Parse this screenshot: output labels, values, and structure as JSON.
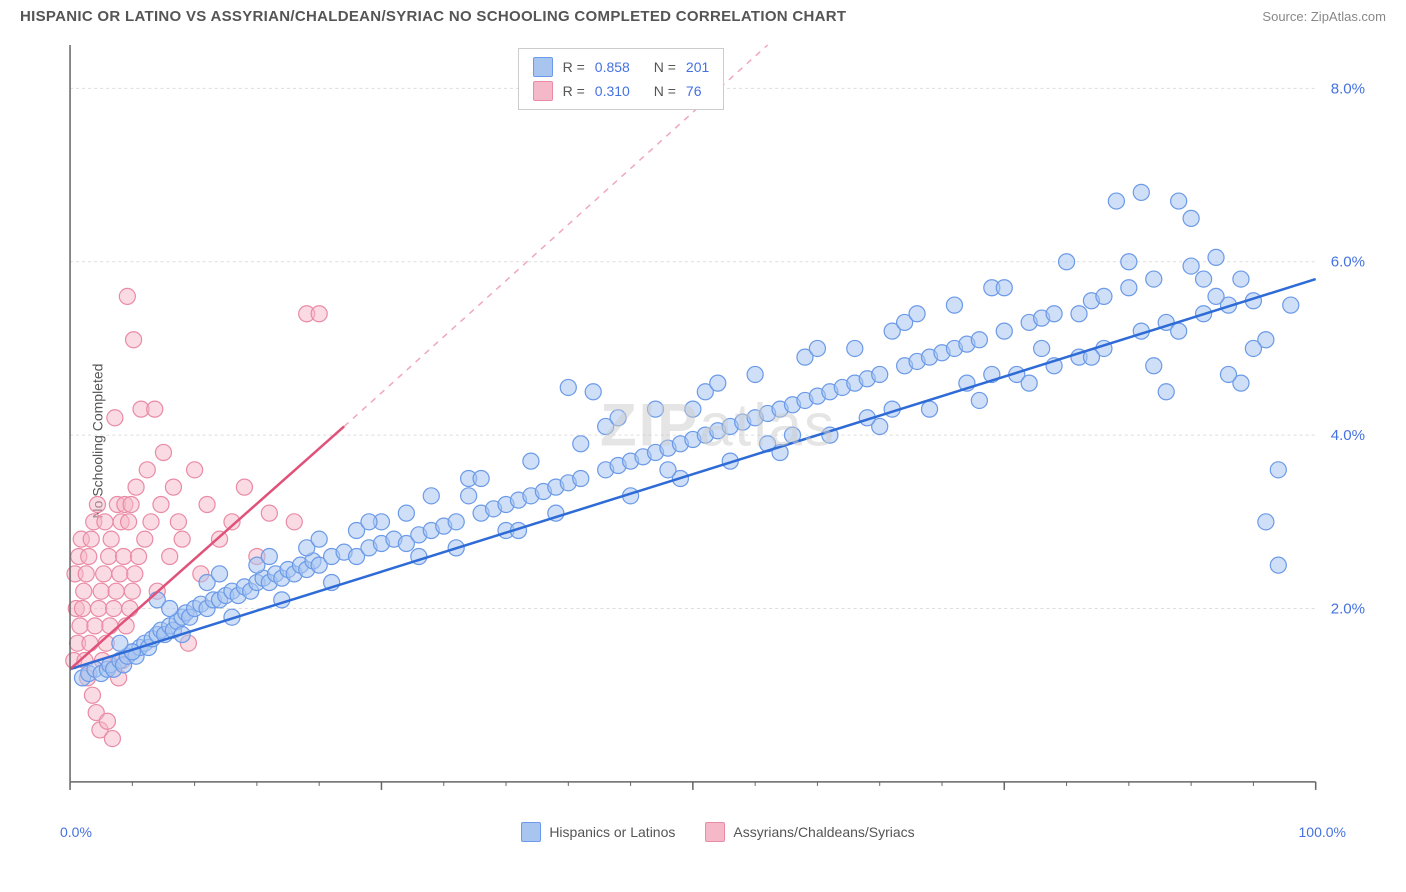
{
  "title": "HISPANIC OR LATINO VS ASSYRIAN/CHALDEAN/SYRIAC NO SCHOOLING COMPLETED CORRELATION CHART",
  "source_label": "Source:",
  "source_name": "ZipAtlas.com",
  "y_axis_label": "No Schooling Completed",
  "watermark": "ZIPatlas",
  "chart": {
    "type": "scatter",
    "xlim": [
      0,
      100
    ],
    "ylim": [
      0,
      8.5
    ],
    "x_tick_min": "0.0%",
    "x_tick_max": "100.0%",
    "y_ticks": [
      2.0,
      4.0,
      6.0,
      8.0
    ],
    "y_tick_labels": [
      "2.0%",
      "4.0%",
      "6.0%",
      "8.0%"
    ],
    "x_major_ticks": [
      0,
      25,
      50,
      75,
      100
    ],
    "background_color": "#ffffff",
    "grid_color": "#dddddd",
    "axis_color": "#666666",
    "marker_radius": 8,
    "marker_stroke_width": 1.2,
    "trend_line_width": 2.5,
    "series": [
      {
        "name": "Hispanics or Latinos",
        "fill_color": "#a8c5f0",
        "stroke_color": "#6b9ae8",
        "line_color": "#2e6bd6",
        "fill_opacity": 0.55,
        "R": "0.858",
        "N": "201",
        "trend": {
          "x1": 0,
          "y1": 1.3,
          "x2": 100,
          "y2": 5.8
        },
        "points": [
          [
            1,
            1.2
          ],
          [
            1.5,
            1.25
          ],
          [
            2,
            1.3
          ],
          [
            2.5,
            1.25
          ],
          [
            3,
            1.3
          ],
          [
            3.2,
            1.35
          ],
          [
            3.5,
            1.3
          ],
          [
            4,
            1.4
          ],
          [
            4.3,
            1.35
          ],
          [
            4.6,
            1.45
          ],
          [
            5,
            1.5
          ],
          [
            5.3,
            1.45
          ],
          [
            5.6,
            1.55
          ],
          [
            6,
            1.6
          ],
          [
            6.3,
            1.55
          ],
          [
            6.6,
            1.65
          ],
          [
            7,
            1.7
          ],
          [
            7.3,
            1.75
          ],
          [
            7.6,
            1.7
          ],
          [
            8,
            1.8
          ],
          [
            8.3,
            1.75
          ],
          [
            8.6,
            1.85
          ],
          [
            9,
            1.9
          ],
          [
            9.3,
            1.95
          ],
          [
            9.6,
            1.9
          ],
          [
            10,
            2.0
          ],
          [
            10.5,
            2.05
          ],
          [
            11,
            2.0
          ],
          [
            11.5,
            2.1
          ],
          [
            12,
            2.1
          ],
          [
            12.5,
            2.15
          ],
          [
            13,
            2.2
          ],
          [
            13.5,
            2.15
          ],
          [
            14,
            2.25
          ],
          [
            14.5,
            2.2
          ],
          [
            15,
            2.3
          ],
          [
            15.5,
            2.35
          ],
          [
            16,
            2.3
          ],
          [
            16.5,
            2.4
          ],
          [
            17,
            2.35
          ],
          [
            17.5,
            2.45
          ],
          [
            18,
            2.4
          ],
          [
            18.5,
            2.5
          ],
          [
            19,
            2.45
          ],
          [
            19.5,
            2.55
          ],
          [
            20,
            2.5
          ],
          [
            21,
            2.6
          ],
          [
            22,
            2.65
          ],
          [
            23,
            2.6
          ],
          [
            24,
            2.7
          ],
          [
            25,
            2.75
          ],
          [
            26,
            2.8
          ],
          [
            27,
            2.75
          ],
          [
            28,
            2.85
          ],
          [
            29,
            2.9
          ],
          [
            30,
            2.95
          ],
          [
            31,
            3.0
          ],
          [
            32,
            3.5
          ],
          [
            33,
            3.1
          ],
          [
            34,
            3.15
          ],
          [
            35,
            3.2
          ],
          [
            36,
            3.25
          ],
          [
            37,
            3.3
          ],
          [
            38,
            3.35
          ],
          [
            39,
            3.4
          ],
          [
            40,
            3.45
          ],
          [
            41,
            3.5
          ],
          [
            42,
            4.5
          ],
          [
            43,
            3.6
          ],
          [
            44,
            3.65
          ],
          [
            45,
            3.7
          ],
          [
            46,
            3.75
          ],
          [
            47,
            3.8
          ],
          [
            48,
            3.85
          ],
          [
            49,
            3.9
          ],
          [
            50,
            3.95
          ],
          [
            51,
            4.0
          ],
          [
            52,
            4.05
          ],
          [
            53,
            4.1
          ],
          [
            54,
            4.15
          ],
          [
            55,
            4.2
          ],
          [
            56,
            4.25
          ],
          [
            57,
            4.3
          ],
          [
            58,
            4.35
          ],
          [
            59,
            4.4
          ],
          [
            60,
            4.45
          ],
          [
            61,
            4.5
          ],
          [
            62,
            4.55
          ],
          [
            63,
            4.6
          ],
          [
            64,
            4.65
          ],
          [
            65,
            4.7
          ],
          [
            66,
            5.2
          ],
          [
            67,
            4.8
          ],
          [
            68,
            4.85
          ],
          [
            69,
            4.9
          ],
          [
            70,
            4.95
          ],
          [
            71,
            5.0
          ],
          [
            72,
            5.05
          ],
          [
            73,
            5.1
          ],
          [
            74,
            5.7
          ],
          [
            75,
            5.2
          ],
          [
            76,
            4.7
          ],
          [
            77,
            5.3
          ],
          [
            78,
            5.35
          ],
          [
            79,
            5.4
          ],
          [
            80,
            6.0
          ],
          [
            81,
            4.9
          ],
          [
            82,
            5.55
          ],
          [
            83,
            5.6
          ],
          [
            84,
            6.7
          ],
          [
            85,
            5.7
          ],
          [
            86,
            5.2
          ],
          [
            87,
            5.8
          ],
          [
            88,
            5.3
          ],
          [
            89,
            6.7
          ],
          [
            90,
            5.95
          ],
          [
            91,
            5.4
          ],
          [
            92,
            6.05
          ],
          [
            93,
            5.5
          ],
          [
            94,
            4.6
          ],
          [
            95,
            5.55
          ],
          [
            96,
            5.1
          ],
          [
            97,
            3.6
          ],
          [
            97,
            2.5
          ],
          [
            96,
            3.0
          ],
          [
            95,
            5.0
          ],
          [
            93,
            4.7
          ],
          [
            91,
            5.8
          ],
          [
            89,
            5.2
          ],
          [
            87,
            4.8
          ],
          [
            85,
            6.0
          ],
          [
            83,
            5.0
          ],
          [
            81,
            5.4
          ],
          [
            79,
            4.8
          ],
          [
            77,
            4.6
          ],
          [
            75,
            5.7
          ],
          [
            73,
            4.4
          ],
          [
            71,
            5.5
          ],
          [
            69,
            4.3
          ],
          [
            67,
            5.3
          ],
          [
            65,
            4.1
          ],
          [
            63,
            5.0
          ],
          [
            61,
            4.0
          ],
          [
            59,
            4.9
          ],
          [
            57,
            3.8
          ],
          [
            55,
            4.7
          ],
          [
            53,
            3.7
          ],
          [
            51,
            4.5
          ],
          [
            49,
            3.5
          ],
          [
            47,
            4.3
          ],
          [
            45,
            3.3
          ],
          [
            43,
            4.1
          ],
          [
            41,
            3.9
          ],
          [
            39,
            3.1
          ],
          [
            37,
            3.7
          ],
          [
            35,
            2.9
          ],
          [
            33,
            3.5
          ],
          [
            31,
            2.7
          ],
          [
            29,
            3.3
          ],
          [
            27,
            3.1
          ],
          [
            25,
            3.0
          ],
          [
            23,
            2.9
          ],
          [
            21,
            2.3
          ],
          [
            19,
            2.7
          ],
          [
            17,
            2.1
          ],
          [
            15,
            2.5
          ],
          [
            13,
            1.9
          ],
          [
            11,
            2.3
          ],
          [
            9,
            1.7
          ],
          [
            7,
            2.1
          ],
          [
            5,
            1.5
          ],
          [
            40,
            4.55
          ],
          [
            88,
            4.5
          ],
          [
            92,
            5.6
          ],
          [
            94,
            5.8
          ],
          [
            86,
            6.8
          ],
          [
            78,
            5.0
          ],
          [
            72,
            4.6
          ],
          [
            68,
            5.4
          ],
          [
            64,
            4.2
          ],
          [
            60,
            5.0
          ],
          [
            56,
            3.9
          ],
          [
            52,
            4.6
          ],
          [
            48,
            3.6
          ],
          [
            44,
            4.2
          ],
          [
            36,
            2.9
          ],
          [
            32,
            3.3
          ],
          [
            28,
            2.6
          ],
          [
            24,
            3.0
          ],
          [
            20,
            2.8
          ],
          [
            16,
            2.6
          ],
          [
            12,
            2.4
          ],
          [
            8,
            2.0
          ],
          [
            4,
            1.6
          ],
          [
            50,
            4.3
          ],
          [
            58,
            4.0
          ],
          [
            66,
            4.3
          ],
          [
            74,
            4.7
          ],
          [
            82,
            4.9
          ],
          [
            90,
            6.5
          ],
          [
            98,
            5.5
          ]
        ]
      },
      {
        "name": "Assyrians/Chaldeans/Syriacs",
        "fill_color": "#f5b8c8",
        "stroke_color": "#ea8ba5",
        "line_color": "#e0527a",
        "fill_opacity": 0.5,
        "R": "0.310",
        "N": "76",
        "trend": {
          "x1": 0,
          "y1": 1.3,
          "x2": 22,
          "y2": 4.1
        },
        "trend_dashed": {
          "x1": 22,
          "y1": 4.1,
          "x2": 56,
          "y2": 8.5
        },
        "points": [
          [
            0.3,
            1.4
          ],
          [
            0.5,
            2.0
          ],
          [
            0.4,
            2.4
          ],
          [
            0.6,
            1.6
          ],
          [
            0.7,
            2.6
          ],
          [
            0.8,
            1.8
          ],
          [
            0.9,
            2.8
          ],
          [
            1.0,
            2.0
          ],
          [
            1.1,
            2.2
          ],
          [
            1.2,
            1.4
          ],
          [
            1.3,
            2.4
          ],
          [
            1.4,
            1.2
          ],
          [
            1.5,
            2.6
          ],
          [
            1.6,
            1.6
          ],
          [
            1.7,
            2.8
          ],
          [
            1.8,
            1.0
          ],
          [
            1.9,
            3.0
          ],
          [
            2.0,
            1.8
          ],
          [
            2.1,
            0.8
          ],
          [
            2.2,
            3.2
          ],
          [
            2.3,
            2.0
          ],
          [
            2.4,
            0.6
          ],
          [
            2.5,
            2.2
          ],
          [
            2.6,
            1.4
          ],
          [
            2.7,
            2.4
          ],
          [
            2.8,
            3.0
          ],
          [
            2.9,
            1.6
          ],
          [
            3.0,
            0.7
          ],
          [
            3.1,
            2.6
          ],
          [
            3.2,
            1.8
          ],
          [
            3.3,
            2.8
          ],
          [
            3.4,
            0.5
          ],
          [
            3.5,
            2.0
          ],
          [
            3.6,
            4.2
          ],
          [
            3.7,
            2.2
          ],
          [
            3.8,
            3.2
          ],
          [
            3.9,
            1.2
          ],
          [
            4.0,
            2.4
          ],
          [
            4.1,
            3.0
          ],
          [
            4.2,
            1.4
          ],
          [
            4.3,
            2.6
          ],
          [
            4.4,
            3.2
          ],
          [
            4.5,
            1.8
          ],
          [
            4.6,
            5.6
          ],
          [
            4.7,
            3.0
          ],
          [
            4.8,
            2.0
          ],
          [
            4.9,
            3.2
          ],
          [
            5.0,
            2.2
          ],
          [
            5.1,
            5.1
          ],
          [
            5.2,
            2.4
          ],
          [
            5.3,
            3.4
          ],
          [
            5.5,
            2.6
          ],
          [
            5.7,
            4.3
          ],
          [
            6.0,
            2.8
          ],
          [
            6.2,
            3.6
          ],
          [
            6.5,
            3.0
          ],
          [
            6.8,
            4.3
          ],
          [
            7.0,
            2.2
          ],
          [
            7.3,
            3.2
          ],
          [
            7.5,
            3.8
          ],
          [
            8.0,
            2.6
          ],
          [
            8.3,
            3.4
          ],
          [
            8.7,
            3.0
          ],
          [
            9.0,
            2.8
          ],
          [
            9.5,
            1.6
          ],
          [
            10,
            3.6
          ],
          [
            10.5,
            2.4
          ],
          [
            11,
            3.2
          ],
          [
            12,
            2.8
          ],
          [
            13,
            3.0
          ],
          [
            14,
            3.4
          ],
          [
            15,
            2.6
          ],
          [
            16,
            3.1
          ],
          [
            18,
            3.0
          ],
          [
            19,
            5.4
          ],
          [
            20,
            5.4
          ]
        ]
      }
    ]
  },
  "bottom_legend": [
    {
      "label": "Hispanics or Latinos",
      "fill": "#a8c5f0",
      "stroke": "#6b9ae8"
    },
    {
      "label": "Assyrians/Chaldeans/Syriacs",
      "fill": "#f5b8c8",
      "stroke": "#ea8ba5"
    }
  ],
  "top_legend_labels": {
    "R": "R =",
    "N": "N ="
  },
  "colors": {
    "tick_text_blue": "#4472e0",
    "tick_text_gray": "#666666"
  }
}
